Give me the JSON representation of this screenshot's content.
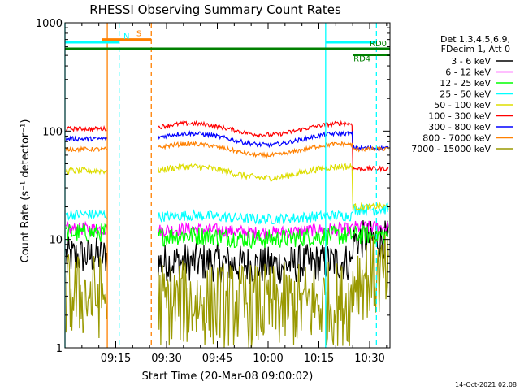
{
  "chart_data": {
    "type": "line",
    "title": "RHESSI Observing Summary Count Rates",
    "xlabel": "Start Time (20-Mar-08 09:00:02)",
    "ylabel": "Count Rate (s⁻¹ detector⁻¹)",
    "yscale": "log",
    "ylim": [
      1,
      1000
    ],
    "xlim_minutes": [
      0,
      96
    ],
    "xticks": [
      {
        "label": "09:15",
        "minute": 15
      },
      {
        "label": "09:30",
        "minute": 30
      },
      {
        "label": "09:45",
        "minute": 45
      },
      {
        "label": "10:00",
        "minute": 60
      },
      {
        "label": "10:15",
        "minute": 75
      },
      {
        "label": "10:30",
        "minute": 90
      }
    ],
    "yticks": [
      {
        "label": "1",
        "value": 1
      },
      {
        "label": "10",
        "value": 10
      },
      {
        "label": "100",
        "value": 100
      },
      {
        "label": "1000",
        "value": 1000
      }
    ],
    "legend_header": [
      "Det 1,3,4,5,6,9,",
      "FDecim 1, Att 0"
    ],
    "legend_position": "right",
    "series": [
      {
        "name": "3 - 6 keV",
        "color": "#000000",
        "base_before": 7,
        "base_after": 6,
        "base_end": 10,
        "jitter": 0.18
      },
      {
        "name": "6 - 12 keV",
        "color": "#ff00ff",
        "base_before": 12.5,
        "base_after": 12,
        "base_end": 13,
        "jitter": 0.06
      },
      {
        "name": "12 - 25 keV",
        "color": "#00ff00",
        "base_before": 11.5,
        "base_after": 10.5,
        "base_end": 11,
        "jitter": 0.09
      },
      {
        "name": "25 - 50 keV",
        "color": "#00ffff",
        "base_before": 17,
        "base_after": 16,
        "base_end": 19,
        "jitter": 0.05
      },
      {
        "name": "50 - 100 keV",
        "color": "#dddd00",
        "base_before": 43,
        "base_after": 42,
        "base_end": 20,
        "jitter": 0.03
      },
      {
        "name": "100 - 300 keV",
        "color": "#ff0000",
        "base_before": 105,
        "base_after": 105,
        "base_end": 45,
        "jitter": 0.02
      },
      {
        "name": "300 - 800 keV",
        "color": "#0000ff",
        "base_before": 85,
        "base_after": 85,
        "base_end": 70,
        "jitter": 0.02
      },
      {
        "name": "800 - 7000 keV",
        "color": "#ff8000",
        "base_before": 68,
        "base_after": 68,
        "base_end": 68,
        "jitter": 0.02
      },
      {
        "name": "7000 - 15000 keV",
        "color": "#999900",
        "base_before": 3,
        "base_after": 2.5,
        "base_end": 4.5,
        "jitter": 0.4
      }
    ],
    "data_gaps_minutes": [
      [
        12.5,
        27.5
      ]
    ],
    "state_bars": [
      {
        "label": "S",
        "color": "#ff8000",
        "start": 11,
        "end": 25.5,
        "level": 700
      },
      {
        "label": "N",
        "color": "#00ffff",
        "start": 0,
        "end": 16,
        "level": 660
      },
      {
        "label": "",
        "color": "#00ffff",
        "start": 77,
        "end": 92,
        "level": 660
      },
      {
        "label": "RD0",
        "color": "#008000",
        "start": 0,
        "end": 96,
        "level": 575
      },
      {
        "label": "RD4",
        "color": "#008000",
        "start": 85,
        "end": 92,
        "level": 505
      },
      {
        "label": "",
        "color": "#008000",
        "start": 92,
        "end": 96,
        "level": 505
      }
    ],
    "vertical_markers": [
      {
        "minute": 0,
        "color": "#00ffff",
        "style": "solid"
      },
      {
        "minute": 12.5,
        "color": "#ff8000",
        "style": "solid"
      },
      {
        "minute": 16,
        "color": "#00ffff",
        "style": "dashed"
      },
      {
        "minute": 25.5,
        "color": "#ff8000",
        "style": "dashed"
      },
      {
        "minute": 77,
        "color": "#00ffff",
        "style": "solid"
      },
      {
        "minute": 92,
        "color": "#00ffff",
        "style": "dashed"
      }
    ]
  },
  "footer_date": "14-Oct-2021 02:08"
}
